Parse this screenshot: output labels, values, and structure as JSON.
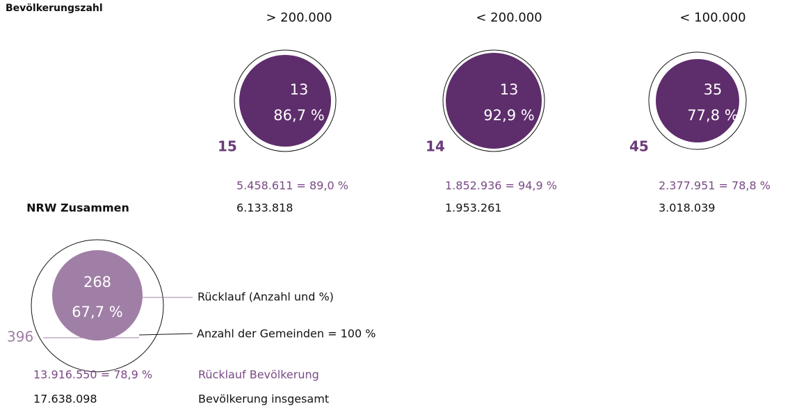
{
  "header": {
    "title": "Bevölkerungszahl"
  },
  "groups": [
    {
      "heading": "> 200.000",
      "returned": "13",
      "percent": "86,7 %",
      "count": "15",
      "population_returned": "5.458.611 = 89,0 %",
      "population_total": "6.133.818"
    },
    {
      "heading": "< 200.000",
      "returned": "13",
      "percent": "92,9 %",
      "count": "14",
      "population_returned": "1.852.936 = 94,9 %",
      "population_total": "1.953.261"
    },
    {
      "heading": "< 100.000",
      "returned": "35",
      "percent": "77,8 %",
      "count": "45",
      "population_returned": "2.377.951 = 78,8 %",
      "population_total": "3.018.039"
    }
  ],
  "total": {
    "heading": "NRW Zusammen",
    "returned": "268",
    "percent": "67,7 %",
    "count": "396",
    "population_returned": "13.916.550 = 78,9 %",
    "population_total": "17.638.098"
  },
  "legend": {
    "return_label": "Rücklauf (Anzahl und %)",
    "count_label": "Anzahl der Gemeinden = 100 %",
    "population_return_label": "Rücklauf Bevölkerung",
    "population_total_label": "Bevölkerung insgesamt"
  }
}
